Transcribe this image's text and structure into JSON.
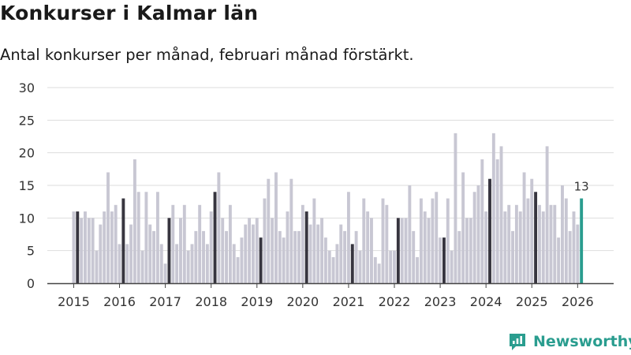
{
  "chart_data": {
    "type": "bar",
    "title": "Konkurser i Kalmar län",
    "subtitle": "Antal konkurser per månad, februari månad förstärkt.",
    "ylim": [
      0,
      30
    ],
    "yticks": [
      0,
      5,
      10,
      15,
      20,
      25,
      30
    ],
    "xticks": [
      "2015",
      "2016",
      "2017",
      "2018",
      "2019",
      "2020",
      "2021",
      "2022",
      "2023",
      "2024",
      "2025",
      "2026"
    ],
    "start": "2015-01",
    "values": [
      11,
      11,
      10,
      11,
      10,
      10,
      5,
      9,
      11,
      17,
      11,
      12,
      6,
      13,
      6,
      9,
      19,
      14,
      5,
      14,
      9,
      8,
      14,
      6,
      3,
      10,
      12,
      6,
      10,
      12,
      5,
      6,
      8,
      12,
      8,
      6,
      11,
      14,
      17,
      10,
      8,
      12,
      6,
      4,
      7,
      9,
      10,
      9,
      10,
      7,
      13,
      16,
      10,
      17,
      8,
      7,
      11,
      16,
      8,
      8,
      12,
      11,
      9,
      13,
      9,
      10,
      7,
      5,
      4,
      6,
      9,
      8,
      14,
      6,
      8,
      5,
      13,
      11,
      10,
      4,
      3,
      13,
      12,
      5,
      5,
      10,
      10,
      10,
      15,
      8,
      4,
      13,
      11,
      10,
      13,
      14,
      7,
      7,
      13,
      5,
      23,
      8,
      17,
      10,
      10,
      14,
      15,
      19,
      11,
      16,
      23,
      19,
      21,
      11,
      12,
      8,
      12,
      11,
      17,
      13,
      16,
      14,
      12,
      11,
      21,
      12,
      12,
      7,
      15,
      13,
      8,
      11,
      9,
      13
    ],
    "highlight_label": "13",
    "colors": {
      "bar": "#c8c7d3",
      "february": "#37353f",
      "latest": "#2a9d8f",
      "grid": "#dddddd",
      "axis": "#444444",
      "text": "#333333"
    }
  },
  "brand": {
    "name": "Newsworthy",
    "icon": "newsworthy-logo-icon",
    "color": "#2a9d8f"
  }
}
